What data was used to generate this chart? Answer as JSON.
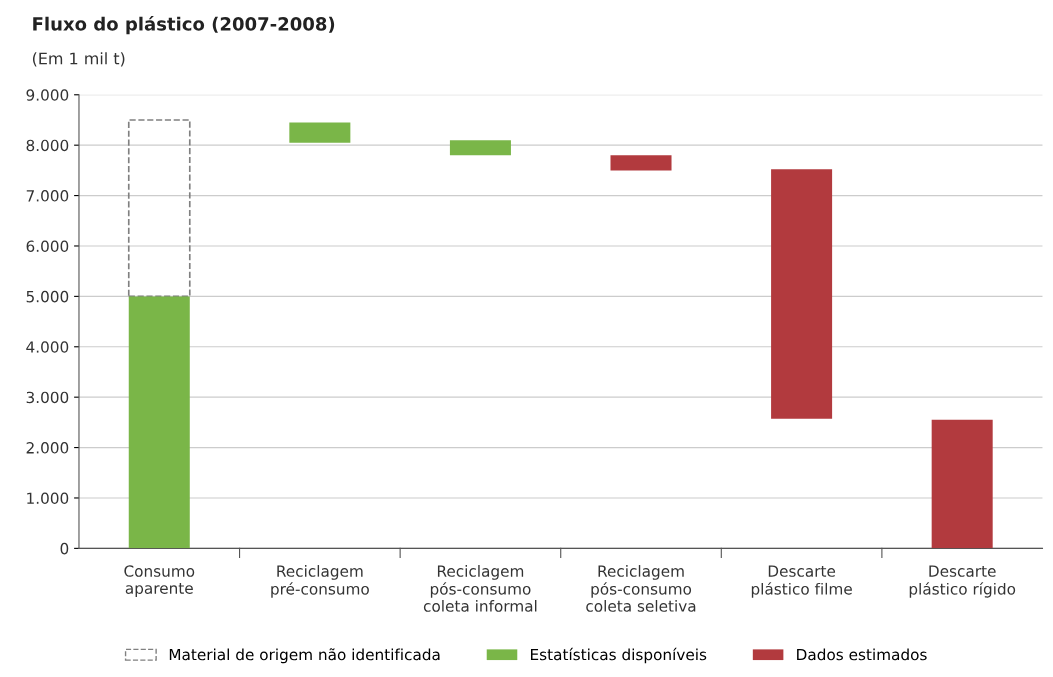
{
  "chart_data": {
    "type": "bar",
    "title": "Fluxo do plástico (2007-2008)",
    "subtitle": "(Em 1 mil t)",
    "categories": [
      "Consumo\naparente",
      "Reciclagem\npré-consumo",
      "Reciclagem\npós-consumo\ncoleta informal",
      "Reciclagem\npós-consumo\ncoleta seletiva",
      "Descarte\nplástico filme",
      "Descarte\nplástico rígido"
    ],
    "series": [
      {
        "name": "Material de origem não identificada",
        "color": "#808080",
        "line_style": "dashed",
        "values": [
          3500,
          null,
          null,
          null,
          null,
          null
        ],
        "base": [
          5000,
          null,
          null,
          null,
          null,
          null
        ]
      },
      {
        "name": "Estatísticas disponíveis",
        "color": "#7ab648",
        "values": [
          5000,
          400,
          300,
          null,
          null,
          null
        ],
        "base": [
          0,
          8050,
          7800,
          null,
          null,
          null
        ]
      },
      {
        "name": "Dados estimados",
        "color": "#b23a3e",
        "values": [
          null,
          null,
          null,
          300,
          4950,
          2550
        ],
        "base": [
          null,
          null,
          null,
          7500,
          2570,
          0
        ]
      }
    ],
    "ylim": [
      0,
      9000
    ],
    "yticks": [
      {
        "value": 0,
        "label": "0"
      },
      {
        "value": 1000,
        "label": "1.000"
      },
      {
        "value": 2000,
        "label": "2.000"
      },
      {
        "value": 3000,
        "label": "3.000"
      },
      {
        "value": 4000,
        "label": "4.000"
      },
      {
        "value": 5000,
        "label": "5.000"
      },
      {
        "value": 6000,
        "label": "6.000"
      },
      {
        "value": 7000,
        "label": "7.000"
      },
      {
        "value": 8000,
        "label": "8.000"
      },
      {
        "value": 9000,
        "label": "9.000"
      }
    ],
    "grid": "y",
    "legend": "bottom"
  }
}
